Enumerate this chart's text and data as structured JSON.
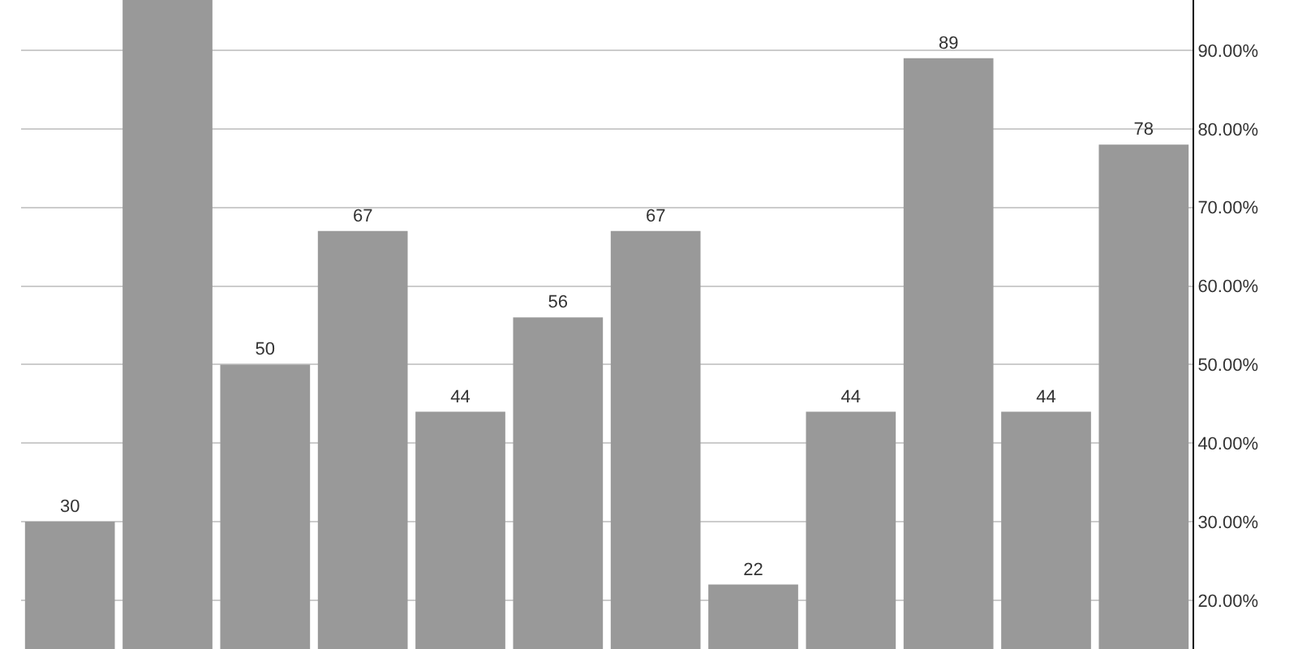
{
  "chart_data": {
    "type": "bar",
    "categories": [
      null,
      null,
      null,
      null,
      null,
      null,
      null,
      null,
      null,
      null,
      null,
      null
    ],
    "values": [
      30,
      96.4,
      50,
      67,
      44,
      56,
      67,
      22,
      44,
      89,
      44,
      78
    ],
    "value_labels": [
      "30",
      null,
      "50",
      "67",
      "44",
      "56",
      "67",
      "22",
      "44",
      "89",
      "44",
      "78"
    ],
    "color": "#999999",
    "ylim": [
      13.8,
      96.4
    ],
    "yticks": [
      {
        "value": 20,
        "label": "20.00%"
      },
      {
        "value": 30,
        "label": "30.00%"
      },
      {
        "value": 40,
        "label": "40.00%"
      },
      {
        "value": 50,
        "label": "50.00%"
      },
      {
        "value": 60,
        "label": "60.00%"
      },
      {
        "value": 70,
        "label": "70.00%"
      },
      {
        "value": 80,
        "label": "80.00%"
      },
      {
        "value": 90,
        "label": "90.00%"
      }
    ],
    "grid": "y"
  }
}
